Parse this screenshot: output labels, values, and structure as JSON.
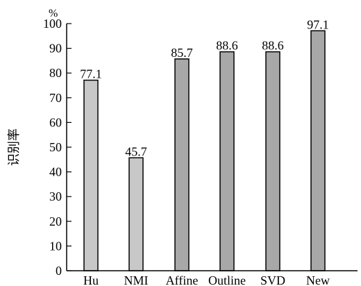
{
  "chart_data": {
    "type": "bar",
    "categories": [
      "Hu",
      "NMI",
      "Affine",
      "Outline",
      "SVD",
      "New"
    ],
    "values": [
      77.1,
      45.7,
      85.7,
      88.6,
      88.6,
      97.1
    ],
    "data_labels": [
      "77.1",
      "45.7",
      "85.7",
      "88.6",
      "88.6",
      "97.1"
    ],
    "ylabel": "识别率",
    "y_unit": "%",
    "ylim": [
      0,
      100
    ],
    "yticks": [
      0,
      10,
      20,
      30,
      40,
      50,
      60,
      70,
      80,
      90,
      100
    ],
    "grid": false,
    "colors": {
      "light_bars": "#c8c8c8",
      "dark_bars": "#a8a8a8",
      "stroke": "#000000"
    },
    "bar_shades": [
      "light",
      "light",
      "dark",
      "dark",
      "dark",
      "dark"
    ]
  }
}
